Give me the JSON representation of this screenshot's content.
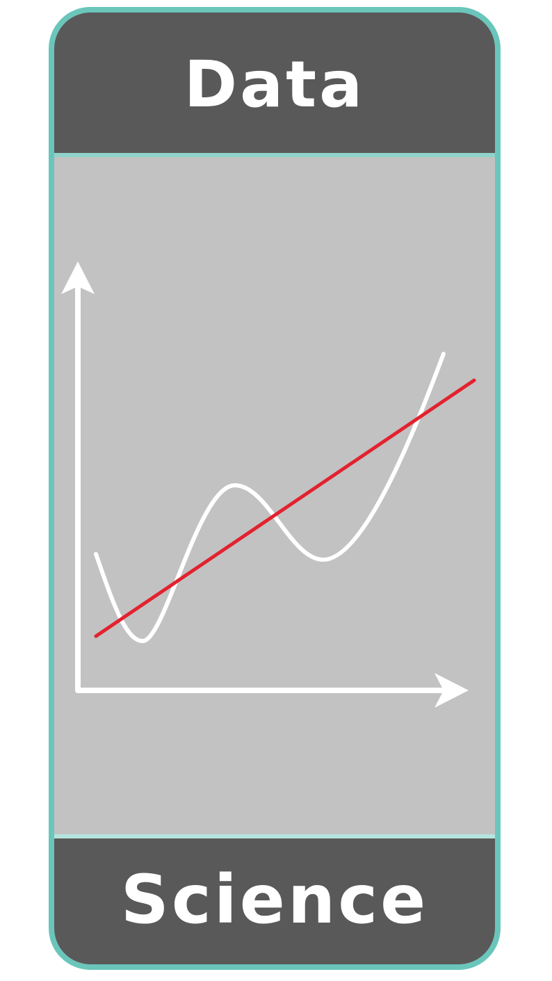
{
  "header": {
    "title": "Data"
  },
  "footer": {
    "title": "Science"
  },
  "colors": {
    "frame": "#6ac6bb",
    "band": "#595959",
    "panel": "#c2c2c2",
    "curve": "#ffffff",
    "trend_line": "#e3222f"
  },
  "illustration": {
    "elements": [
      "y-axis-arrow",
      "x-axis-arrow",
      "wavy-curve",
      "trend-line"
    ]
  }
}
